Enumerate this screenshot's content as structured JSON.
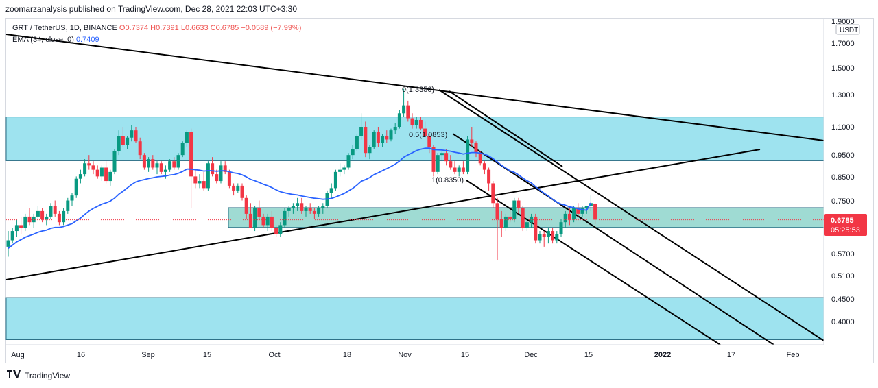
{
  "header": {
    "publish_text": "zoomarzanalysis published on TradingView.com, Dec 28, 2021 22:03 UTC+3:30"
  },
  "legend": {
    "symbol": "GRT / TetherUS, 1D, BINANCE",
    "open": "O0.7374",
    "high": "H0.7391",
    "low": "L0.6633",
    "close": "C0.6785",
    "change": "−0.0589 (−7.99%)",
    "ema_label": "EMA (34, close, 0)",
    "ema_value": "0.7409"
  },
  "price_axis": {
    "currency": "USDT",
    "ticks": [
      "1.9000",
      "1.7000",
      "1.5000",
      "1.3000",
      "1.1000",
      "0.9500",
      "0.8500",
      "0.7500",
      "0.5700",
      "0.5100",
      "0.4500",
      "0.4000"
    ],
    "last_price": "0.6785",
    "countdown": "05:25:53"
  },
  "time_axis": {
    "ticks": [
      "Aug",
      "16",
      "Sep",
      "15",
      "Oct",
      "18",
      "Nov",
      "15",
      "Dec",
      "15",
      "2022",
      "17",
      "Feb"
    ]
  },
  "annotations": {
    "fib_0": "0(1.3356)",
    "fib_05": "0.5(1.0853)",
    "fib_1": "1(0.8350)"
  },
  "footer": {
    "brand": "TradingView"
  },
  "colors": {
    "up": "#089981",
    "down": "#f23645",
    "ema": "#2962ff",
    "zone": "#9ee3ef",
    "price_tag": "#f23645",
    "trendline": "#000000"
  },
  "chart_data": {
    "type": "candlestick",
    "title": "GRT / TetherUS, 1D, BINANCE",
    "scale": "log",
    "ylim": [
      0.35,
      1.9
    ],
    "x_range": [
      "2021-07-29",
      "2022-02-10"
    ],
    "x_ticks": [
      "Aug",
      "16",
      "Sep",
      "15",
      "Oct",
      "18",
      "Nov",
      "15",
      "Dec",
      "15",
      "2022",
      "17",
      "Feb"
    ],
    "series": [
      {
        "name": "GRT / TetherUS",
        "ohlc": [
          [
            0.59,
            0.64,
            0.56,
            0.61
          ],
          [
            0.61,
            0.65,
            0.6,
            0.64
          ],
          [
            0.64,
            0.68,
            0.62,
            0.66
          ],
          [
            0.66,
            0.69,
            0.63,
            0.65
          ],
          [
            0.65,
            0.7,
            0.64,
            0.69
          ],
          [
            0.69,
            0.72,
            0.66,
            0.67
          ],
          [
            0.67,
            0.7,
            0.65,
            0.69
          ],
          [
            0.69,
            0.73,
            0.68,
            0.71
          ],
          [
            0.71,
            0.72,
            0.67,
            0.68
          ],
          [
            0.68,
            0.7,
            0.66,
            0.69
          ],
          [
            0.69,
            0.74,
            0.68,
            0.73
          ],
          [
            0.73,
            0.75,
            0.69,
            0.7
          ],
          [
            0.7,
            0.71,
            0.66,
            0.67
          ],
          [
            0.67,
            0.72,
            0.66,
            0.71
          ],
          [
            0.71,
            0.76,
            0.7,
            0.75
          ],
          [
            0.75,
            0.78,
            0.73,
            0.77
          ],
          [
            0.77,
            0.85,
            0.76,
            0.84
          ],
          [
            0.84,
            0.88,
            0.82,
            0.86
          ],
          [
            0.86,
            0.93,
            0.85,
            0.91
          ],
          [
            0.91,
            0.95,
            0.88,
            0.9
          ],
          [
            0.9,
            0.92,
            0.86,
            0.88
          ],
          [
            0.88,
            0.9,
            0.84,
            0.85
          ],
          [
            0.85,
            0.9,
            0.83,
            0.89
          ],
          [
            0.89,
            0.92,
            0.82,
            0.83
          ],
          [
            0.83,
            0.88,
            0.81,
            0.87
          ],
          [
            0.87,
            0.98,
            0.86,
            0.97
          ],
          [
            0.97,
            1.08,
            0.95,
            1.05
          ],
          [
            1.05,
            1.1,
            0.99,
            1.0
          ],
          [
            1.0,
            1.05,
            0.98,
            1.04
          ],
          [
            1.04,
            1.11,
            1.02,
            1.08
          ],
          [
            1.08,
            1.1,
            1.01,
            1.02
          ],
          [
            1.02,
            1.04,
            0.93,
            0.95
          ],
          [
            0.95,
            0.96,
            0.88,
            0.89
          ],
          [
            0.89,
            0.94,
            0.87,
            0.93
          ],
          [
            0.93,
            0.95,
            0.88,
            0.89
          ],
          [
            0.89,
            0.92,
            0.86,
            0.91
          ],
          [
            0.91,
            0.92,
            0.86,
            0.87
          ],
          [
            0.87,
            0.9,
            0.84,
            0.88
          ],
          [
            0.88,
            0.93,
            0.87,
            0.92
          ],
          [
            0.92,
            0.94,
            0.88,
            0.89
          ],
          [
            0.89,
            0.96,
            0.88,
            0.95
          ],
          [
            0.95,
            1.02,
            0.94,
            1.01
          ],
          [
            1.01,
            1.08,
            0.99,
            1.07
          ],
          [
            1.07,
            1.09,
            0.72,
            0.85
          ],
          [
            0.85,
            0.88,
            0.8,
            0.82
          ],
          [
            0.82,
            0.86,
            0.8,
            0.83
          ],
          [
            0.83,
            0.87,
            0.79,
            0.8
          ],
          [
            0.8,
            0.92,
            0.79,
            0.91
          ],
          [
            0.91,
            0.94,
            0.85,
            0.86
          ],
          [
            0.86,
            0.88,
            0.82,
            0.83
          ],
          [
            0.83,
            0.92,
            0.82,
            0.9
          ],
          [
            0.9,
            0.92,
            0.86,
            0.87
          ],
          [
            0.87,
            0.88,
            0.8,
            0.81
          ],
          [
            0.81,
            0.82,
            0.77,
            0.79
          ],
          [
            0.79,
            0.82,
            0.78,
            0.81
          ],
          [
            0.81,
            0.82,
            0.75,
            0.76
          ],
          [
            0.76,
            0.77,
            0.68,
            0.7
          ],
          [
            0.7,
            0.74,
            0.65,
            0.65
          ],
          [
            0.65,
            0.73,
            0.64,
            0.72
          ],
          [
            0.72,
            0.75,
            0.68,
            0.69
          ],
          [
            0.69,
            0.7,
            0.65,
            0.66
          ],
          [
            0.66,
            0.7,
            0.64,
            0.69
          ],
          [
            0.69,
            0.71,
            0.64,
            0.65
          ],
          [
            0.65,
            0.66,
            0.62,
            0.63
          ],
          [
            0.63,
            0.67,
            0.62,
            0.66
          ],
          [
            0.66,
            0.72,
            0.65,
            0.71
          ],
          [
            0.71,
            0.73,
            0.69,
            0.72
          ],
          [
            0.72,
            0.74,
            0.7,
            0.73
          ],
          [
            0.73,
            0.76,
            0.71,
            0.74
          ],
          [
            0.74,
            0.76,
            0.7,
            0.71
          ],
          [
            0.71,
            0.73,
            0.69,
            0.72
          ],
          [
            0.72,
            0.74,
            0.7,
            0.71
          ],
          [
            0.71,
            0.72,
            0.68,
            0.7
          ],
          [
            0.7,
            0.73,
            0.69,
            0.72
          ],
          [
            0.72,
            0.74,
            0.7,
            0.73
          ],
          [
            0.73,
            0.79,
            0.72,
            0.78
          ],
          [
            0.78,
            0.82,
            0.76,
            0.8
          ],
          [
            0.8,
            0.88,
            0.79,
            0.87
          ],
          [
            0.87,
            0.91,
            0.85,
            0.88
          ],
          [
            0.88,
            0.9,
            0.86,
            0.89
          ],
          [
            0.89,
            0.96,
            0.88,
            0.95
          ],
          [
            0.95,
            1.0,
            0.93,
            0.98
          ],
          [
            0.98,
            1.06,
            0.97,
            1.05
          ],
          [
            1.05,
            1.18,
            1.03,
            1.1
          ],
          [
            1.1,
            1.13,
            0.94,
            0.96
          ],
          [
            0.96,
            1.0,
            0.93,
            0.99
          ],
          [
            0.99,
            1.08,
            0.98,
            1.07
          ],
          [
            1.07,
            1.1,
            0.99,
            1.01
          ],
          [
            1.01,
            1.06,
            0.99,
            1.05
          ],
          [
            1.05,
            1.08,
            1.01,
            1.03
          ],
          [
            1.03,
            1.09,
            1.02,
            1.08
          ],
          [
            1.08,
            1.12,
            1.06,
            1.1
          ],
          [
            1.1,
            1.2,
            1.09,
            1.18
          ],
          [
            1.18,
            1.34,
            1.16,
            1.23
          ],
          [
            1.23,
            1.26,
            1.13,
            1.15
          ],
          [
            1.15,
            1.18,
            1.09,
            1.11
          ],
          [
            1.11,
            1.16,
            1.09,
            1.14
          ],
          [
            1.14,
            1.16,
            1.08,
            1.09
          ],
          [
            1.09,
            1.13,
            1.04,
            1.05
          ],
          [
            1.05,
            1.07,
            0.96,
            0.99
          ],
          [
            0.99,
            1.0,
            0.85,
            0.87
          ],
          [
            0.87,
            0.96,
            0.86,
            0.95
          ],
          [
            0.95,
            0.98,
            0.92,
            0.96
          ],
          [
            0.96,
            0.98,
            0.9,
            0.92
          ],
          [
            0.92,
            0.95,
            0.88,
            0.89
          ],
          [
            0.89,
            0.92,
            0.86,
            0.87
          ],
          [
            0.87,
            0.9,
            0.85,
            0.89
          ],
          [
            0.89,
            0.92,
            0.86,
            0.87
          ],
          [
            0.87,
            1.05,
            0.86,
            1.03
          ],
          [
            1.03,
            1.1,
            0.99,
            1.01
          ],
          [
            1.01,
            1.02,
            0.94,
            0.96
          ],
          [
            0.96,
            0.97,
            0.9,
            0.91
          ],
          [
            0.91,
            0.92,
            0.86,
            0.88
          ],
          [
            0.88,
            0.89,
            0.79,
            0.82
          ],
          [
            0.82,
            0.83,
            0.72,
            0.74
          ],
          [
            0.74,
            0.76,
            0.55,
            0.68
          ],
          [
            0.68,
            0.71,
            0.62,
            0.65
          ],
          [
            0.65,
            0.7,
            0.64,
            0.69
          ],
          [
            0.69,
            0.72,
            0.67,
            0.68
          ],
          [
            0.68,
            0.76,
            0.67,
            0.75
          ],
          [
            0.75,
            0.76,
            0.7,
            0.72
          ],
          [
            0.72,
            0.73,
            0.64,
            0.65
          ],
          [
            0.65,
            0.68,
            0.64,
            0.67
          ],
          [
            0.67,
            0.7,
            0.65,
            0.69
          ],
          [
            0.69,
            0.7,
            0.6,
            0.61
          ],
          [
            0.61,
            0.64,
            0.6,
            0.63
          ],
          [
            0.63,
            0.64,
            0.59,
            0.62
          ],
          [
            0.62,
            0.65,
            0.6,
            0.64
          ],
          [
            0.64,
            0.65,
            0.6,
            0.61
          ],
          [
            0.61,
            0.64,
            0.6,
            0.63
          ],
          [
            0.63,
            0.68,
            0.62,
            0.67
          ],
          [
            0.67,
            0.71,
            0.65,
            0.7
          ],
          [
            0.7,
            0.72,
            0.66,
            0.68
          ],
          [
            0.68,
            0.73,
            0.67,
            0.72
          ],
          [
            0.72,
            0.74,
            0.69,
            0.7
          ],
          [
            0.7,
            0.73,
            0.69,
            0.72
          ],
          [
            0.72,
            0.73,
            0.7,
            0.73
          ],
          [
            0.73,
            0.77,
            0.71,
            0.74
          ],
          [
            0.737,
            0.739,
            0.663,
            0.679
          ]
        ]
      },
      {
        "name": "EMA (34, close, 0)",
        "values": [
          0.585,
          0.595,
          0.605,
          0.612,
          0.62,
          0.625,
          0.63,
          0.636,
          0.64,
          0.643,
          0.649,
          0.652,
          0.652,
          0.655,
          0.66,
          0.665,
          0.675,
          0.685,
          0.698,
          0.71,
          0.72,
          0.728,
          0.736,
          0.741,
          0.748,
          0.759,
          0.775,
          0.787,
          0.801,
          0.815,
          0.826,
          0.832,
          0.836,
          0.841,
          0.844,
          0.848,
          0.85,
          0.852,
          0.856,
          0.858,
          0.864,
          0.872,
          0.883,
          0.883,
          0.88,
          0.878,
          0.874,
          0.876,
          0.875,
          0.873,
          0.875,
          0.875,
          0.871,
          0.866,
          0.863,
          0.857,
          0.848,
          0.837,
          0.831,
          0.824,
          0.816,
          0.81,
          0.802,
          0.793,
          0.785,
          0.781,
          0.777,
          0.774,
          0.772,
          0.768,
          0.765,
          0.762,
          0.759,
          0.757,
          0.755,
          0.756,
          0.758,
          0.764,
          0.771,
          0.778,
          0.788,
          0.799,
          0.813,
          0.829,
          0.836,
          0.845,
          0.858,
          0.866,
          0.876,
          0.885,
          0.895,
          0.906,
          0.921,
          0.939,
          0.951,
          0.961,
          0.972,
          0.979,
          0.984,
          0.985,
          0.977,
          0.976,
          0.975,
          0.972,
          0.969,
          0.964,
          0.96,
          0.955,
          0.959,
          0.962,
          0.962,
          0.959,
          0.954,
          0.945,
          0.932,
          0.917,
          0.9,
          0.888,
          0.875,
          0.868,
          0.857,
          0.843,
          0.831,
          0.822,
          0.806,
          0.792,
          0.779,
          0.768,
          0.755,
          0.744,
          0.736,
          0.732,
          0.726,
          0.723,
          0.718,
          0.715,
          0.713,
          0.741
        ]
      }
    ],
    "last_price": 0.6785,
    "zones": [
      {
        "from": 0.9224,
        "to": 1.158
      },
      {
        "from": 0.6522,
        "to": 0.7226
      },
      {
        "from": 0.364,
        "to": 0.453
      }
    ],
    "fibonacci": [
      {
        "label": "0(1.3356)",
        "price": 1.3356
      },
      {
        "label": "0.5(1.0853)",
        "price": 1.0853
      },
      {
        "label": "1(0.8350)",
        "price": 0.835
      }
    ],
    "price_ticks": [
      1.9,
      1.7,
      1.5,
      1.3,
      1.1,
      0.95,
      0.85,
      0.75,
      0.57,
      0.51,
      0.45,
      0.4
    ],
    "grid": false,
    "legend": "top-left"
  }
}
